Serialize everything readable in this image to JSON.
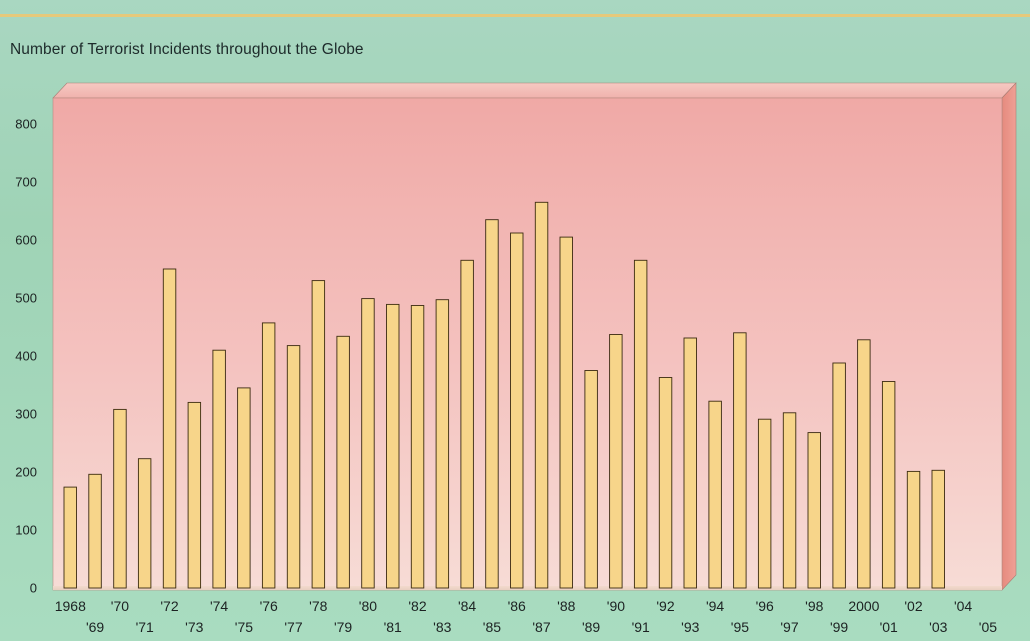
{
  "chart_data": {
    "type": "bar",
    "title": "Number of Terrorist Incidents throughout the Globe",
    "xlabel": "",
    "ylabel": "",
    "ylim": [
      0,
      800
    ],
    "yticks": [
      0,
      100,
      200,
      300,
      400,
      500,
      600,
      700,
      800
    ],
    "ytick_labels": [
      "0",
      "100",
      "200",
      "300",
      "400",
      "500",
      "600",
      "700",
      "800"
    ],
    "categories": [
      "1968",
      "'69",
      "'70",
      "'71",
      "'72",
      "'73",
      "'74",
      "'75",
      "'76",
      "'77",
      "'78",
      "'79",
      "'80",
      "'81",
      "'82",
      "'83",
      "'84",
      "'85",
      "'86",
      "'87",
      "'88",
      "'89",
      "'90",
      "'91",
      "'92",
      "'93",
      "'94",
      "'95",
      "'96",
      "'97",
      "'98",
      "'99",
      "2000",
      "'01",
      "'02",
      "'03",
      "'04",
      "'05"
    ],
    "values": [
      174,
      196,
      308,
      223,
      550,
      320,
      410,
      345,
      457,
      418,
      530,
      434,
      499,
      489,
      487,
      497,
      565,
      635,
      612,
      665,
      605,
      375,
      437,
      565,
      363,
      431,
      322,
      440,
      291,
      302,
      268,
      388,
      428,
      356,
      201,
      203,
      null,
      null
    ],
    "grid": false,
    "legend": "none",
    "colors": {
      "bar_fill": "#f7d58a",
      "bar_edge": "#3b2a10",
      "plot_bg": "#f2b8b8",
      "page_bg": "#a7d6bd",
      "title_rule": "#e6c97a"
    }
  }
}
